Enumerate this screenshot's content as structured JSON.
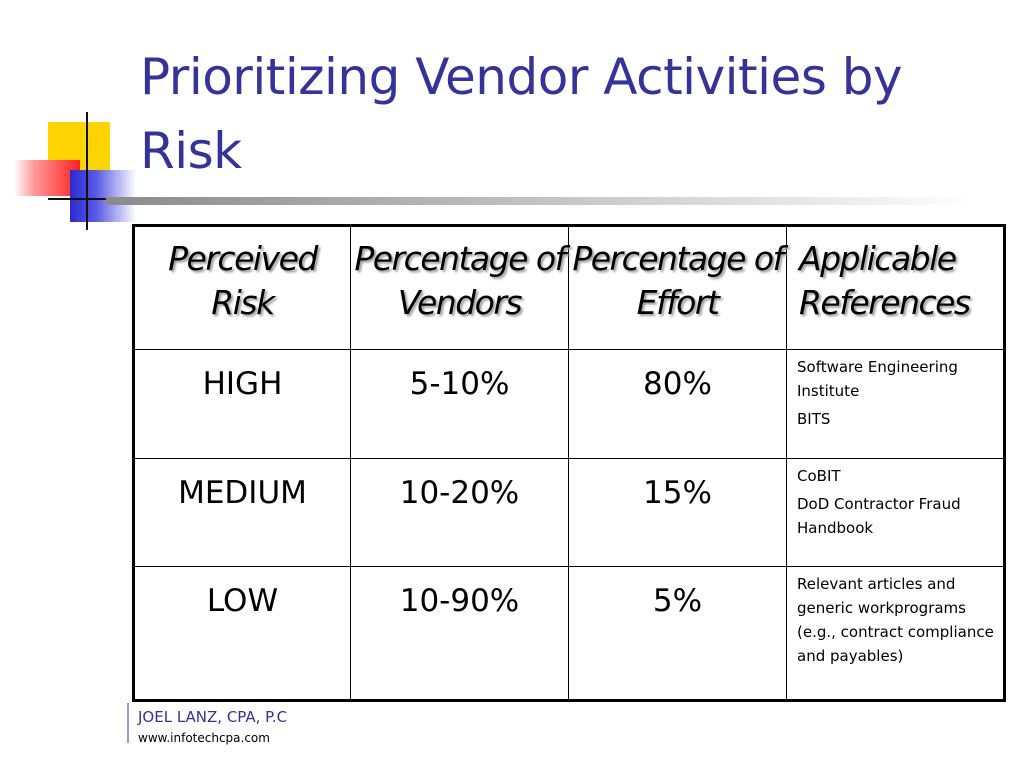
{
  "title": "Prioritizing Vendor Activities by Risk",
  "table": {
    "headers": [
      "Perceived Risk",
      "Percentage of Vendors",
      "Percentage of Effort",
      "Applicable References"
    ],
    "rows": [
      {
        "risk": "HIGH",
        "vendors": "5-10%",
        "effort": "80%",
        "references": [
          "Software Engineering Institute",
          "BITS"
        ]
      },
      {
        "risk": "MEDIUM",
        "vendors": "10-20%",
        "effort": "15%",
        "references": [
          "CoBIT",
          "DoD Contractor Fraud Handbook"
        ]
      },
      {
        "risk": "LOW",
        "vendors": "10-90%",
        "effort": "5%",
        "references": [
          "Relevant articles and generic workprograms (e.g., contract compliance and payables)"
        ]
      }
    ]
  },
  "footer": {
    "name": "JOEL LANZ, CPA, P.C",
    "url": "www.infotechcpa.com"
  },
  "colors": {
    "title": "#333399",
    "accent_yellow": "#ffd400",
    "accent_red": "#ff2020",
    "accent_blue": "#2a2ad0"
  }
}
